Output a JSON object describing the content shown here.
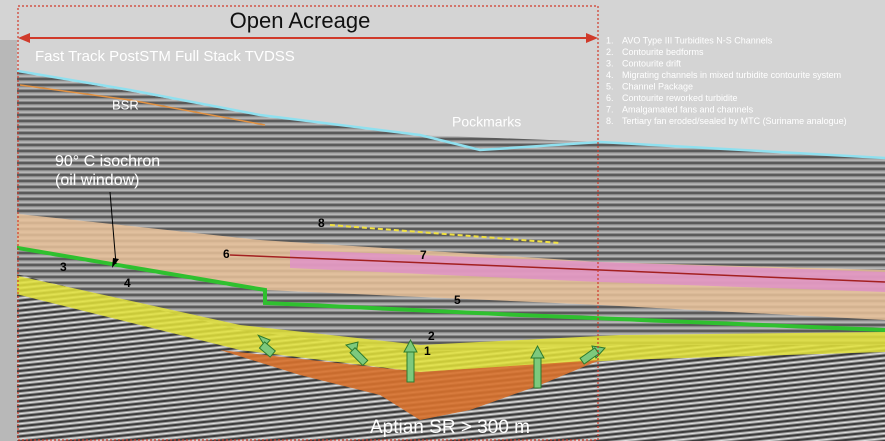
{
  "banner": "Open Acreage",
  "subtitle": "Fast Track PostSTM Full Stack TVDSS",
  "annotations": {
    "bsr": "BSR",
    "pockmarks": "Pockmarks",
    "isochron": [
      "90° C isochron",
      "(oil window)"
    ],
    "source_rock": "Aptian SR > 300 m"
  },
  "legend": [
    {
      "number": "1.",
      "text": "AVO Type III Turbidites N-S Channels"
    },
    {
      "number": "2.",
      "text": "Contourite bedforms"
    },
    {
      "number": "3.",
      "text": "Contourite drift"
    },
    {
      "number": "4.",
      "text": "Migrating channels in mixed turbidite contourite system"
    },
    {
      "number": "5.",
      "text": "Channel Package"
    },
    {
      "number": "6.",
      "text": "Contourite reworked turbidite"
    },
    {
      "number": "7.",
      "text": "Amalgamated fans and channels"
    },
    {
      "number": "8.",
      "text": "Tertiary fan eroded/sealed by MTC (Suriname analogue)"
    }
  ],
  "markers": [
    "8",
    "7",
    "6",
    "5",
    "4",
    "3",
    "2",
    "1"
  ]
}
